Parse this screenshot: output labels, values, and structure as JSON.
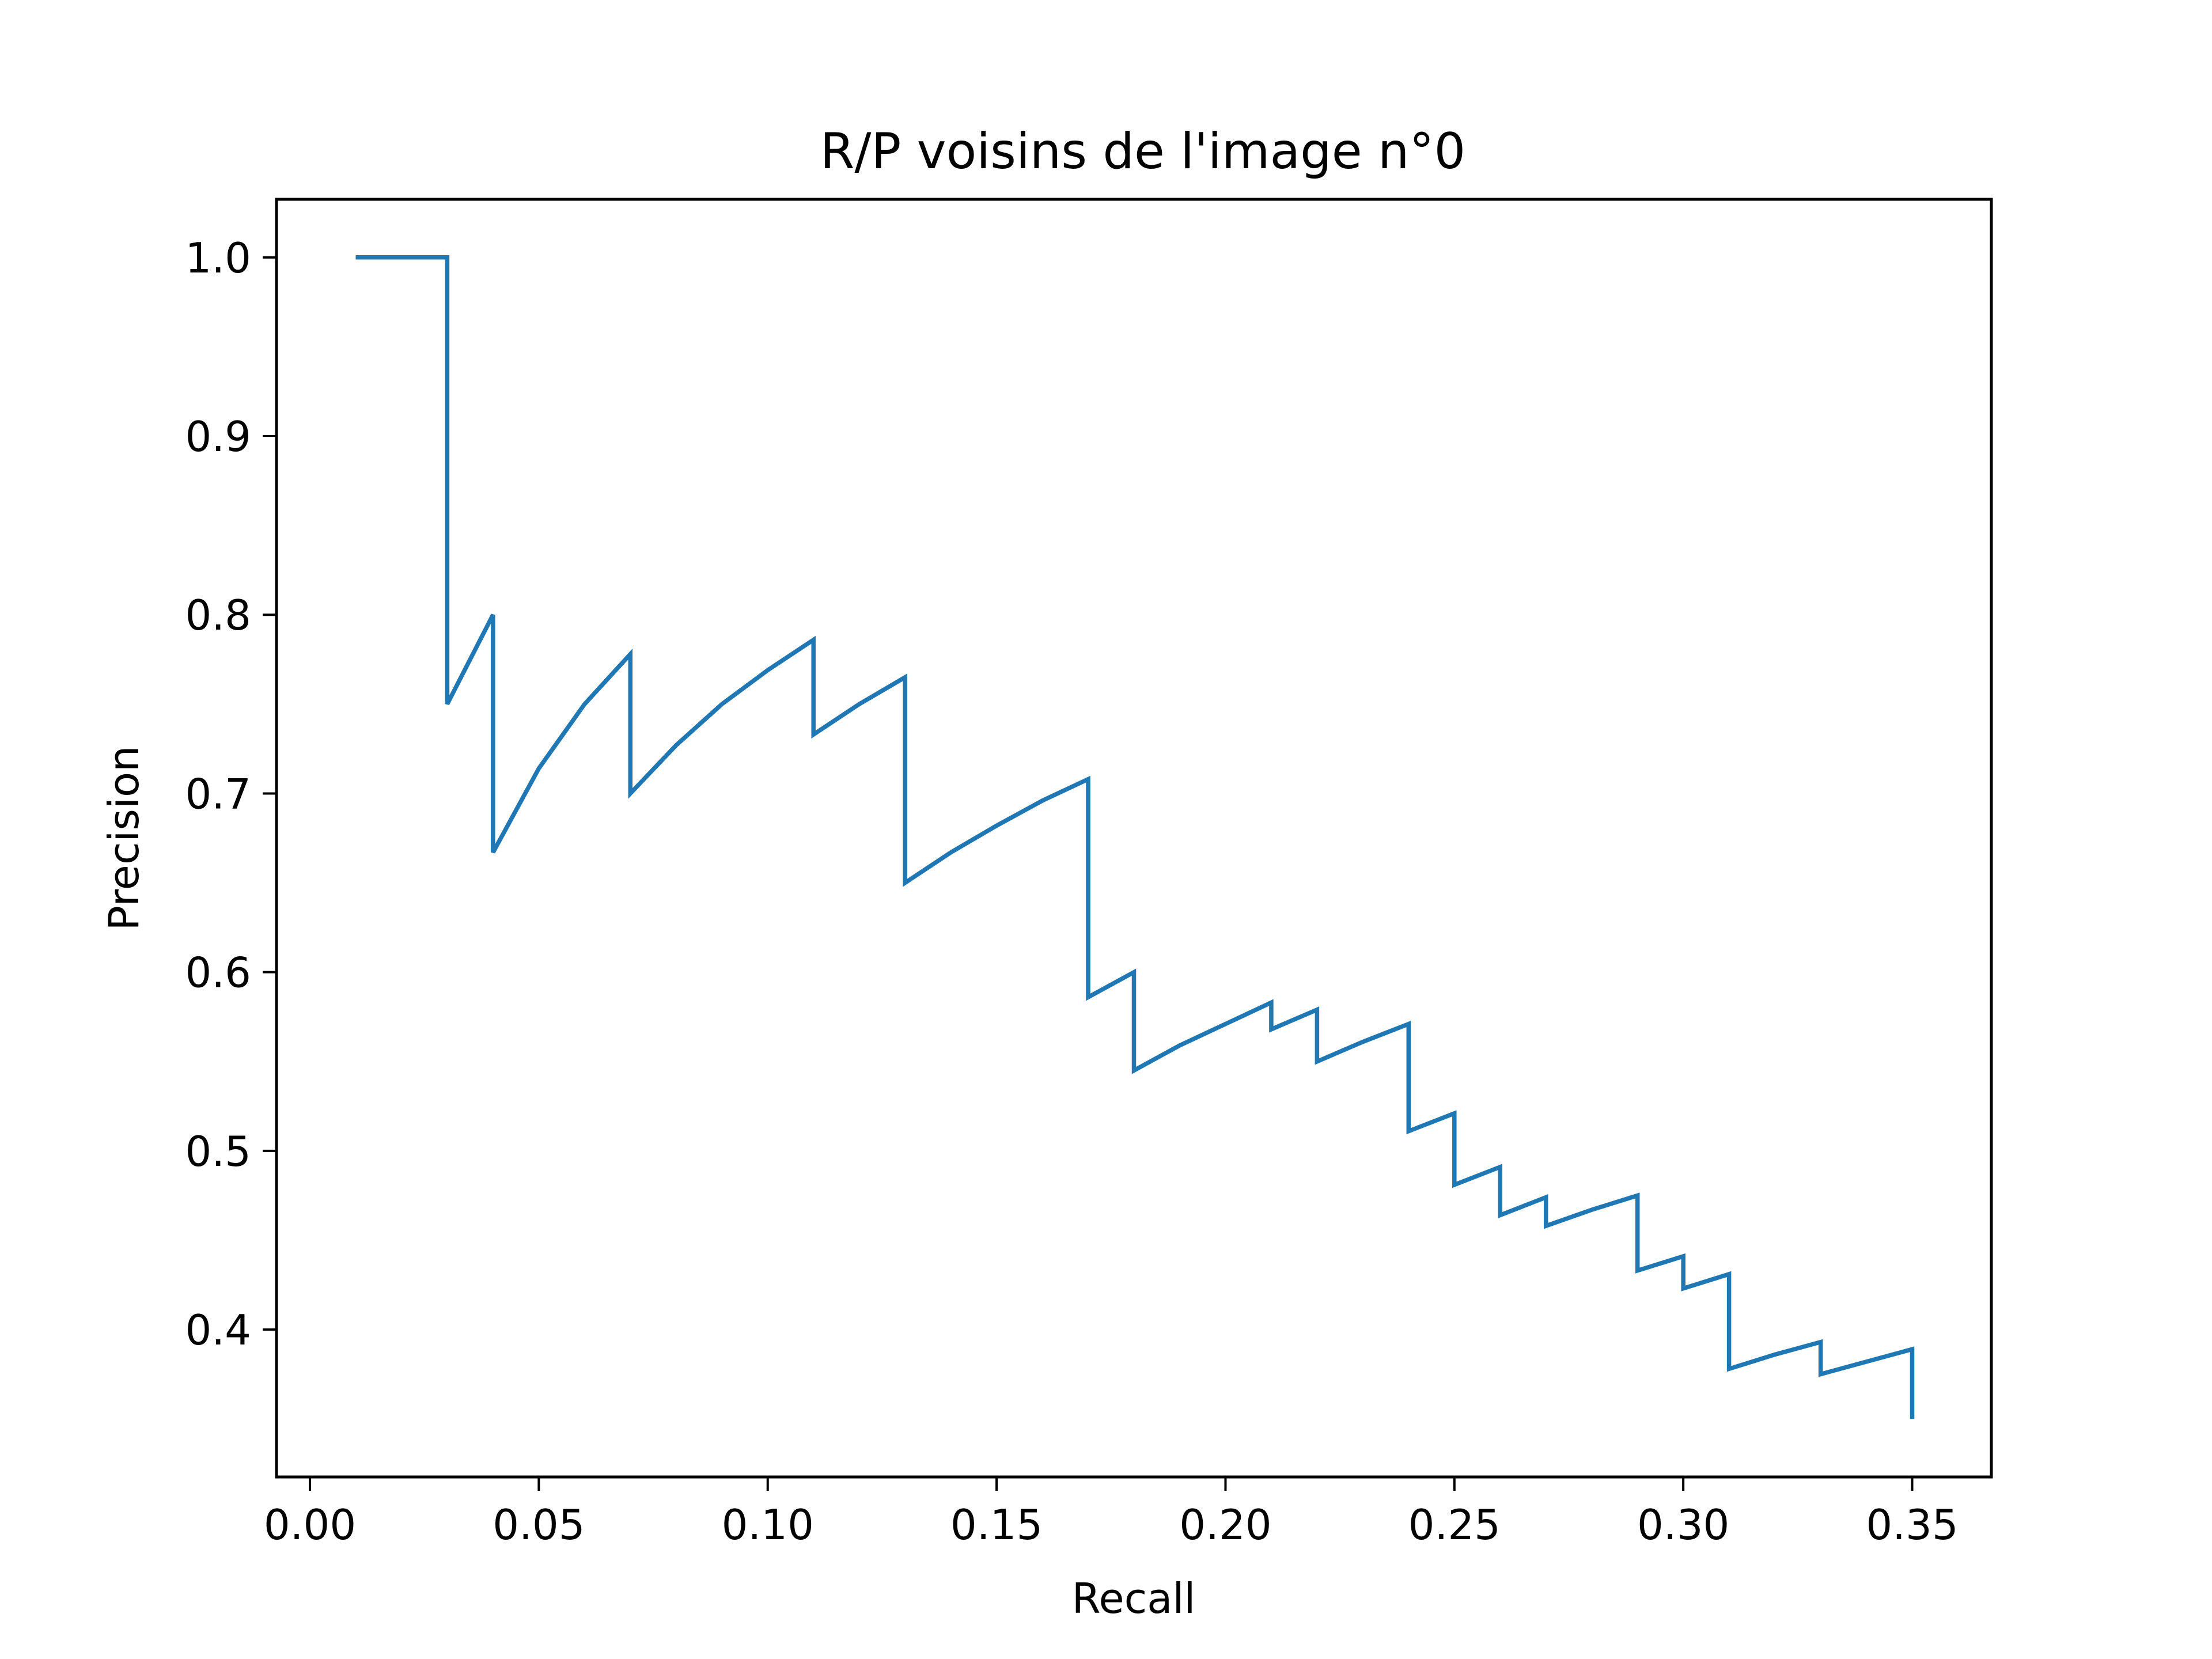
{
  "chart_data": {
    "type": "line",
    "title": "R/P voisins de l'image n°0",
    "xlabel": "Recall",
    "ylabel": "Precision",
    "xlim": [
      -0.0073,
      0.3673
    ],
    "ylim": [
      0.3175,
      1.0325
    ],
    "xticks": [
      0.0,
      0.05,
      0.1,
      0.15,
      0.2,
      0.25,
      0.3,
      0.35
    ],
    "xtick_labels": [
      "0.00",
      "0.05",
      "0.10",
      "0.15",
      "0.20",
      "0.25",
      "0.30",
      "0.35"
    ],
    "yticks": [
      0.4,
      0.5,
      0.6,
      0.7,
      0.8,
      0.9,
      1.0
    ],
    "ytick_labels": [
      "0.4",
      "0.5",
      "0.6",
      "0.7",
      "0.8",
      "0.9",
      "1.0"
    ],
    "grid": false,
    "series": [
      {
        "color": "#1f77b4",
        "x": [
          0.01,
          0.02,
          0.03,
          0.03,
          0.04,
          0.04,
          0.05,
          0.06,
          0.07,
          0.07,
          0.08,
          0.09,
          0.1,
          0.11,
          0.11,
          0.12,
          0.13,
          0.13,
          0.14,
          0.15,
          0.16,
          0.17,
          0.17,
          0.18,
          0.18,
          0.19,
          0.2,
          0.21,
          0.21,
          0.22,
          0.22,
          0.23,
          0.24,
          0.24,
          0.25,
          0.25,
          0.26,
          0.26,
          0.27,
          0.27,
          0.28,
          0.29,
          0.29,
          0.3,
          0.3,
          0.31,
          0.31,
          0.32,
          0.33,
          0.33,
          0.34,
          0.35,
          0.35
        ],
        "y": [
          1.0,
          1.0,
          1.0,
          0.75,
          0.8,
          0.667,
          0.714,
          0.75,
          0.778,
          0.7,
          0.727,
          0.75,
          0.769,
          0.786,
          0.733,
          0.75,
          0.765,
          0.65,
          0.667,
          0.682,
          0.696,
          0.708,
          0.586,
          0.6,
          0.545,
          0.559,
          0.571,
          0.583,
          0.568,
          0.579,
          0.55,
          0.561,
          0.571,
          0.511,
          0.521,
          0.481,
          0.491,
          0.464,
          0.474,
          0.458,
          0.467,
          0.475,
          0.433,
          0.441,
          0.423,
          0.431,
          0.378,
          0.386,
          0.393,
          0.375,
          0.382,
          0.389,
          0.35
        ]
      }
    ]
  }
}
